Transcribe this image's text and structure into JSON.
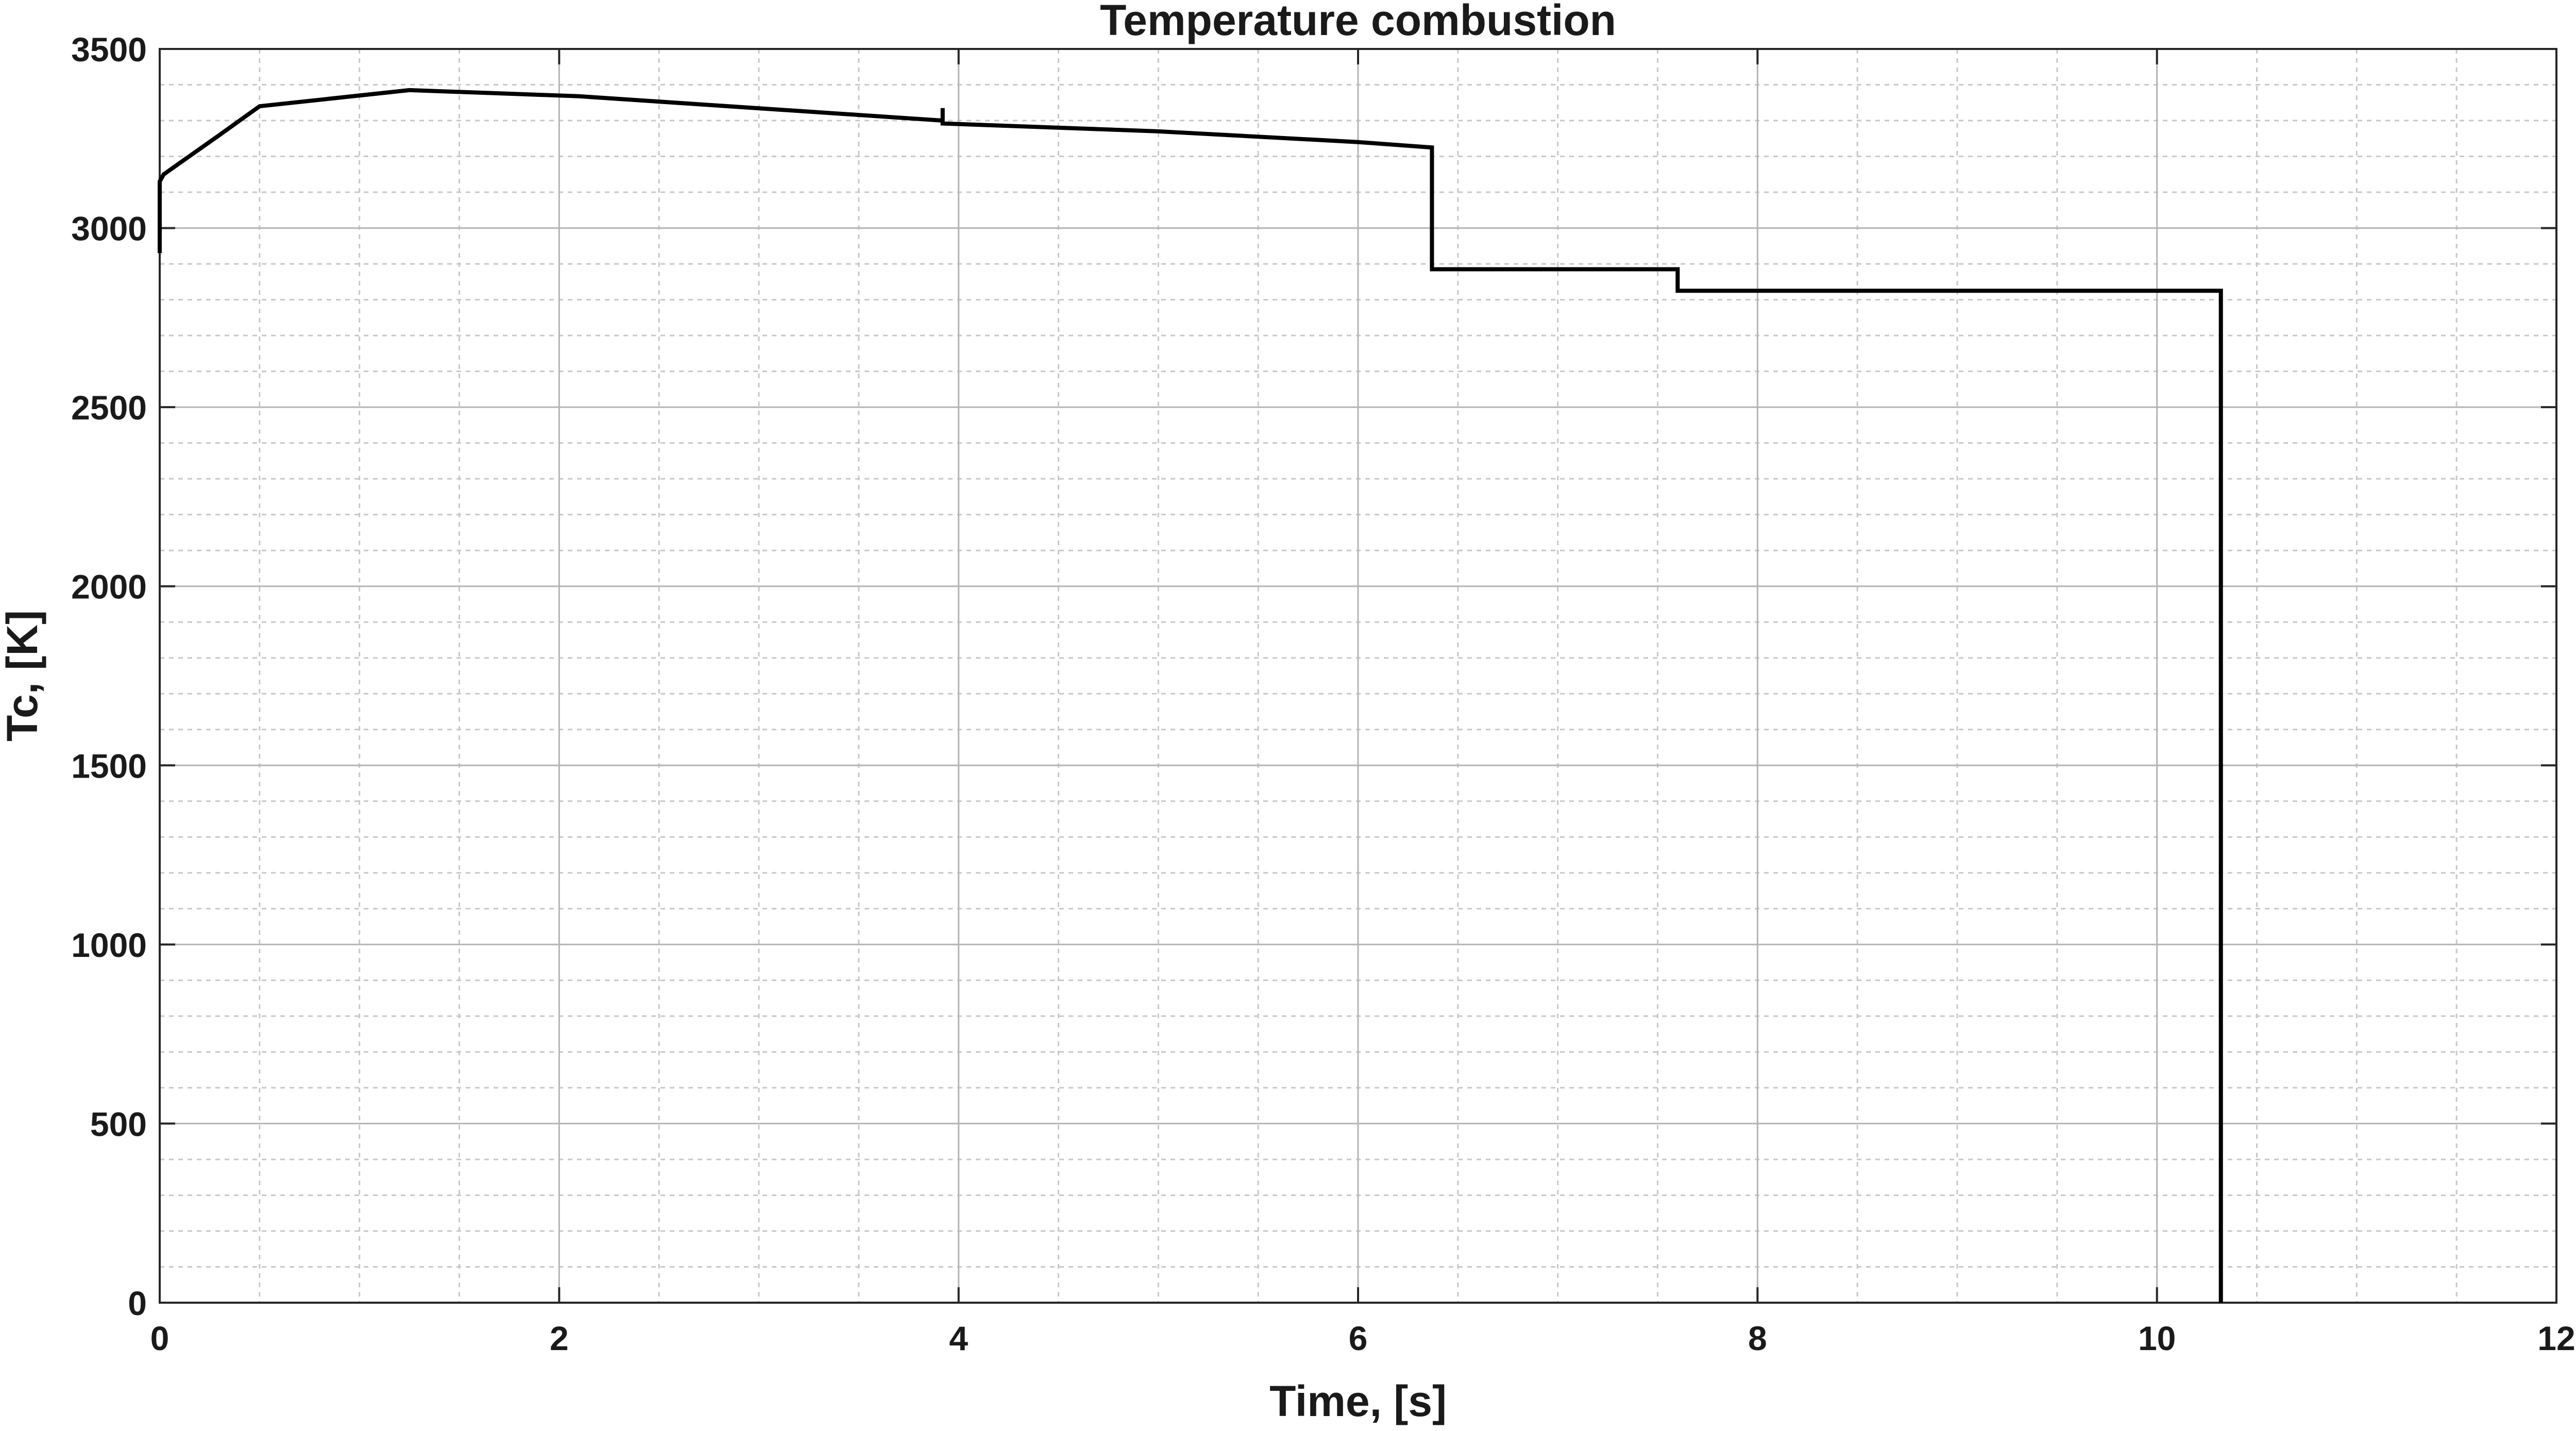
{
  "chart_data": {
    "type": "line",
    "title": "Temperature combustion",
    "xlabel": "Time, [s]",
    "ylabel": "Tc, [K]",
    "xlim": [
      0,
      12
    ],
    "ylim": [
      0,
      3500
    ],
    "x_ticks": [
      0,
      2,
      4,
      6,
      8,
      10,
      12
    ],
    "y_ticks": [
      0,
      500,
      1000,
      1500,
      2000,
      2500,
      3000,
      3500
    ],
    "x_tick_labels": [
      "0",
      "2",
      "4",
      "6",
      "8",
      "10",
      "12"
    ],
    "y_tick_labels": [
      "0",
      "500",
      "1000",
      "1500",
      "2000",
      "2500",
      "3000",
      "3500"
    ],
    "x_minor_step": 0.5,
    "y_minor_step": 100,
    "grid": true,
    "line_color": "#000000",
    "grid_major_color": "#b4b4b4",
    "grid_minor_color": "#c8c8c8",
    "axis_color": "#262626",
    "series": [
      {
        "name": "Tc",
        "x": [
          0,
          0,
          0.02,
          0.3,
          0.5,
          1.25,
          2.1,
          3.92,
          3.92,
          3.92,
          5.0,
          6.0,
          6.37,
          6.37,
          7.6,
          7.6,
          10.32,
          10.32
        ],
        "y": [
          2930,
          3130,
          3150,
          3260,
          3340,
          3385,
          3368,
          3300,
          3335,
          3292,
          3270,
          3240,
          3225,
          2885,
          2885,
          2825,
          2825,
          0
        ]
      }
    ]
  }
}
